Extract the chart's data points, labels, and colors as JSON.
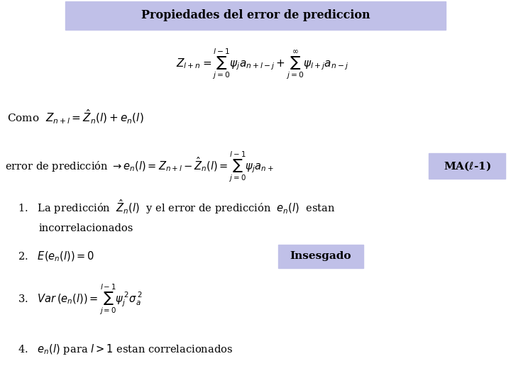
{
  "title": "Propiedades del error de prediccion",
  "title_bg": "#c0c0e8",
  "background_color": "#ffffff",
  "label_ma_bg": "#c0c0e8",
  "label_insesgado": "Insesgado",
  "label_insesgado_bg": "#c0c0e8"
}
